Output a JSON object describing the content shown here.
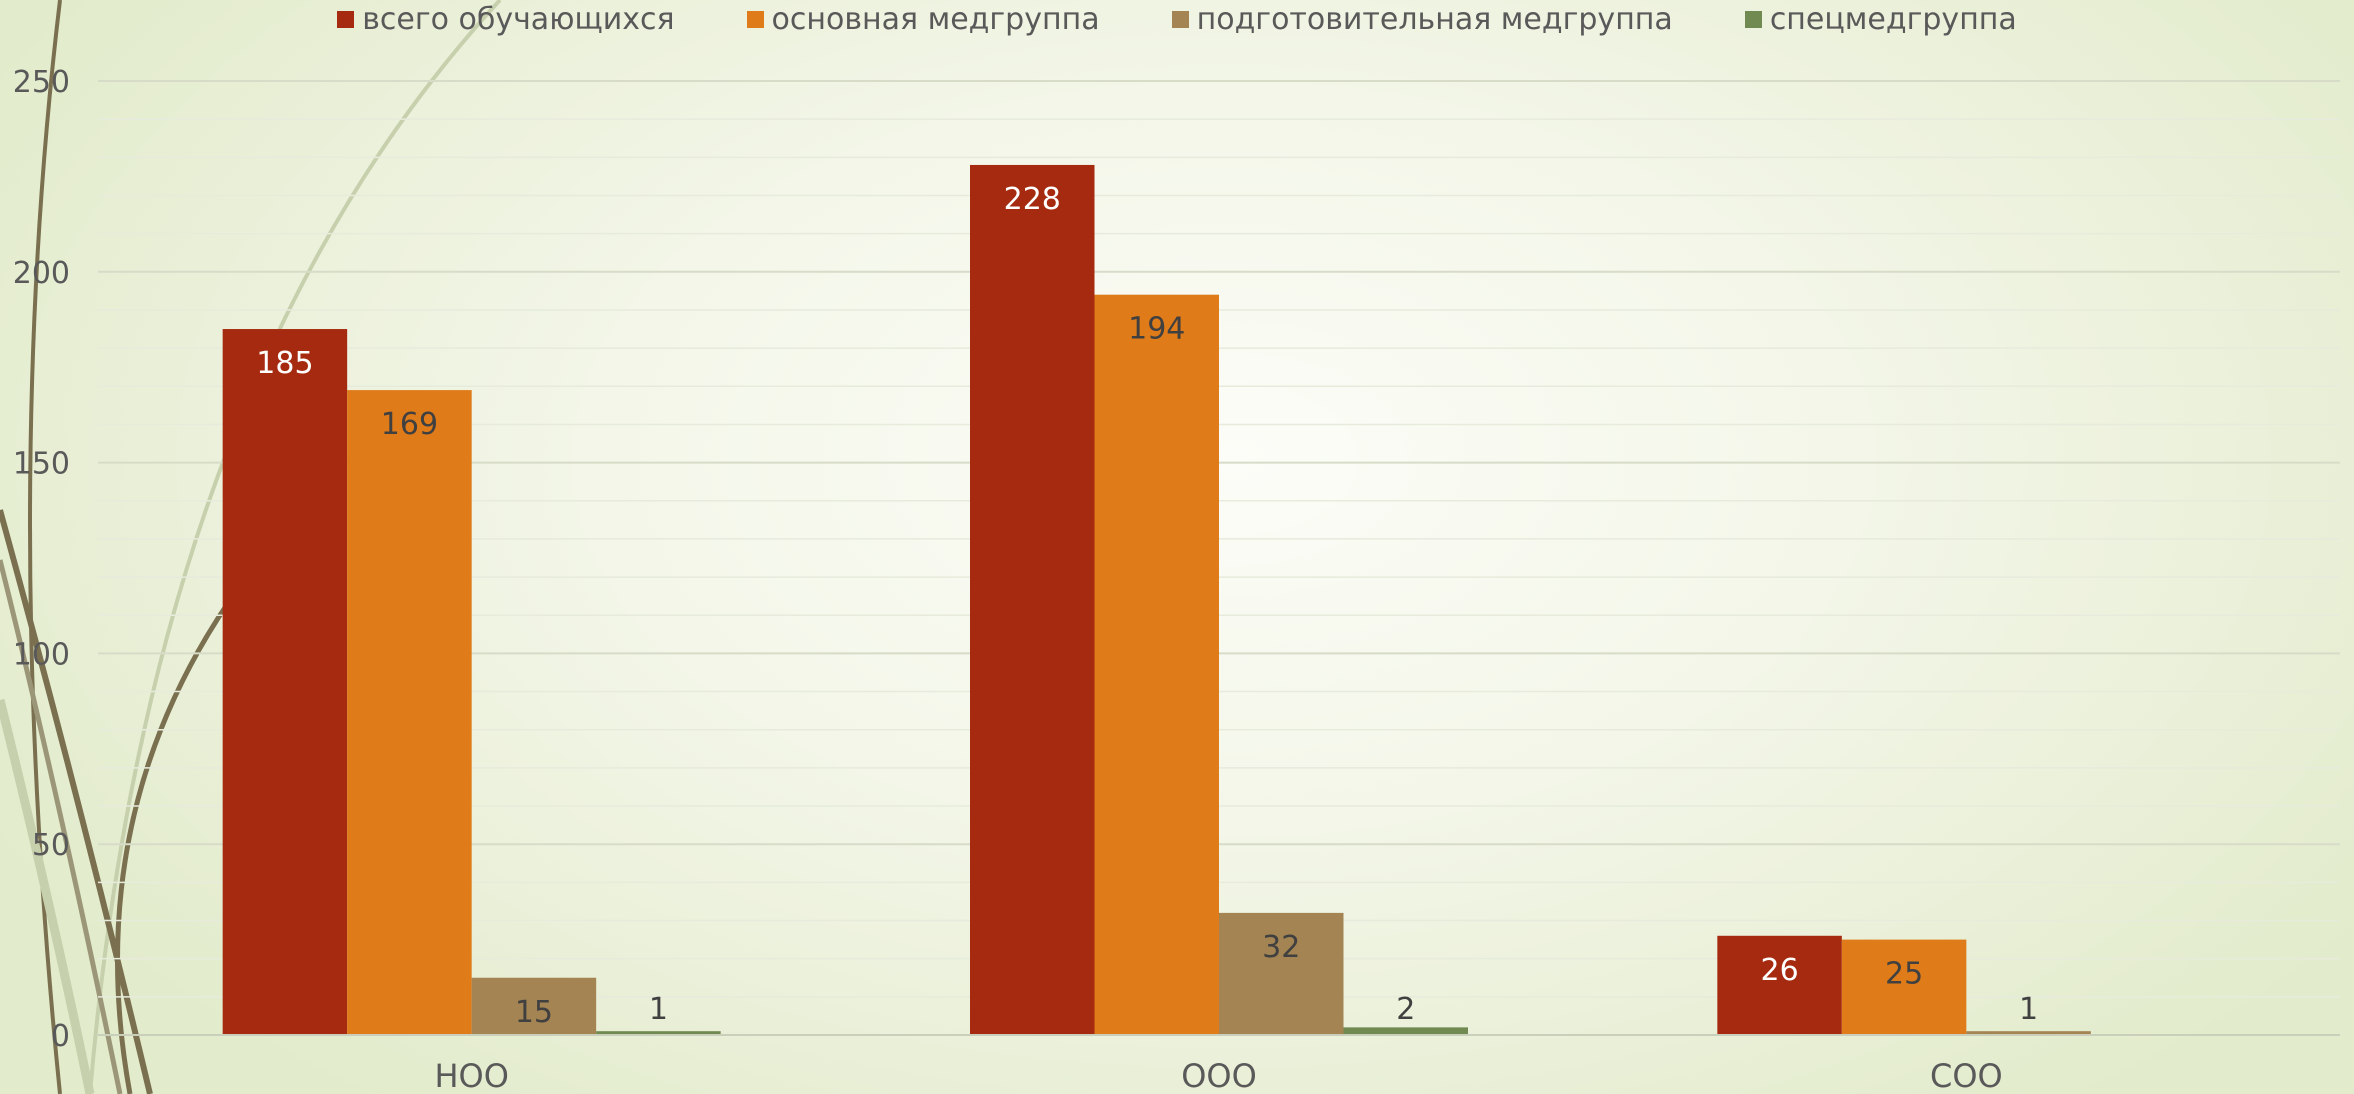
{
  "chart_data": {
    "type": "bar",
    "title": "",
    "xlabel": "",
    "ylabel": "",
    "categories": [
      "НОО",
      "ООО",
      "СОО"
    ],
    "series": [
      {
        "name": "всего обучающихся",
        "values": [
          185,
          228,
          26
        ],
        "color": "#a52a0f",
        "label_color": "#ffffff"
      },
      {
        "name": "основная медгруппа",
        "values": [
          169,
          194,
          25
        ],
        "color": "#df7b19",
        "label_color": "#404040"
      },
      {
        "name": "подготовительная медгруппа",
        "values": [
          15,
          32,
          1
        ],
        "color": "#a38452",
        "label_color": "#404040"
      },
      {
        "name": "спецмедгруппа",
        "values": [
          1,
          2,
          null
        ],
        "color": "#708a52",
        "label_color": "#404040"
      }
    ],
    "ylim": [
      0,
      250
    ],
    "yticks": [
      0,
      50,
      100,
      150,
      200,
      250
    ],
    "legend": "top",
    "grid": true
  }
}
